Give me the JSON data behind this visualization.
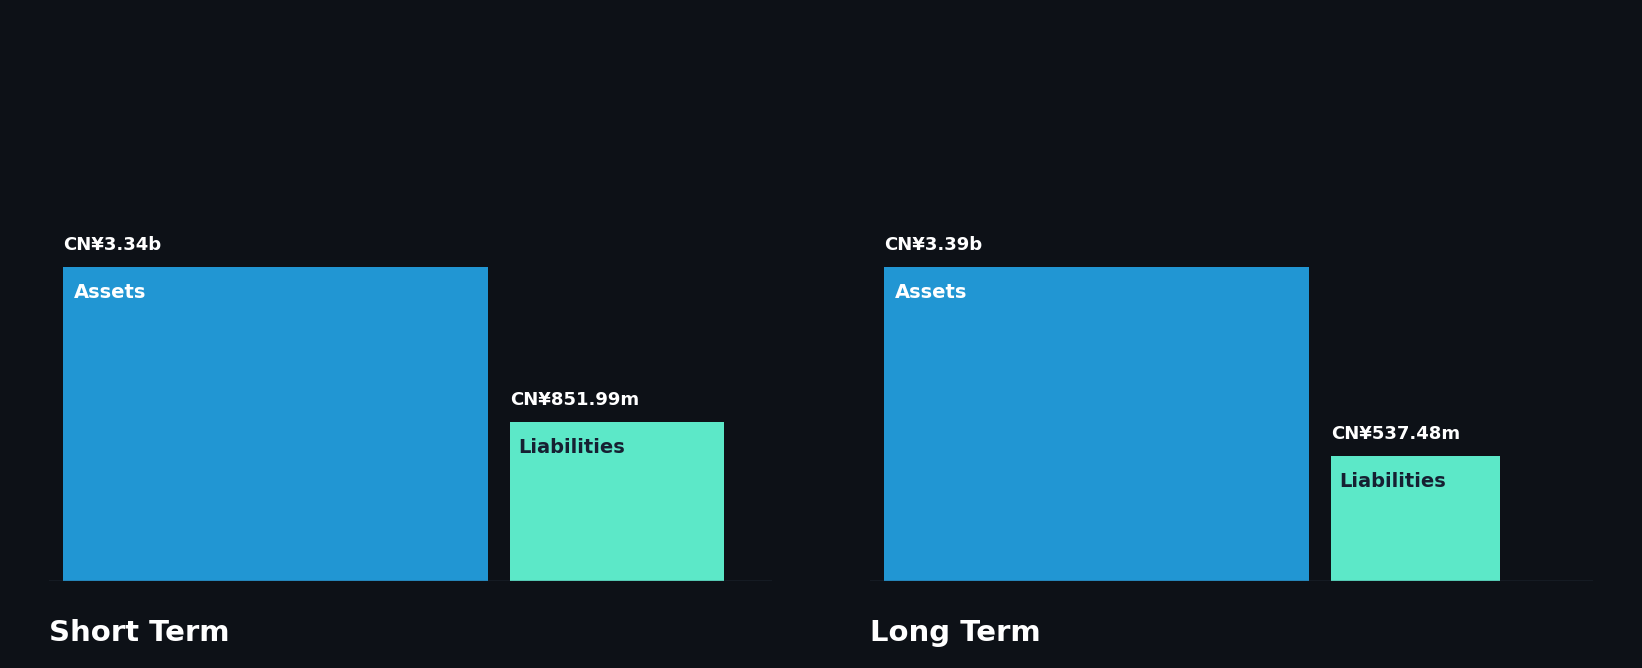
{
  "background_color": "#0d1117",
  "panels": [
    {
      "title": "Short Term",
      "asset_label": "Assets",
      "asset_value": 3340,
      "asset_value_str": "CN¥3.34b",
      "liability_label": "Liabilities",
      "liability_value": 851.99,
      "liability_value_str": "CN¥851.99m"
    },
    {
      "title": "Long Term",
      "asset_label": "Assets",
      "asset_value": 3390,
      "asset_value_str": "CN¥3.39b",
      "liability_label": "Liabilities",
      "liability_value": 537.48,
      "liability_value_str": "CN¥537.48m"
    }
  ],
  "asset_color": "#2196d3",
  "liability_color": "#5ce8c8",
  "text_color_white": "#ffffff",
  "text_color_dark": "#162032",
  "title_fontsize": 21,
  "value_fontsize": 13,
  "bar_inside_label_fontsize": 14,
  "axis_line_color": "#3a4558",
  "max_value": 3500,
  "bar_gap": 0.03
}
